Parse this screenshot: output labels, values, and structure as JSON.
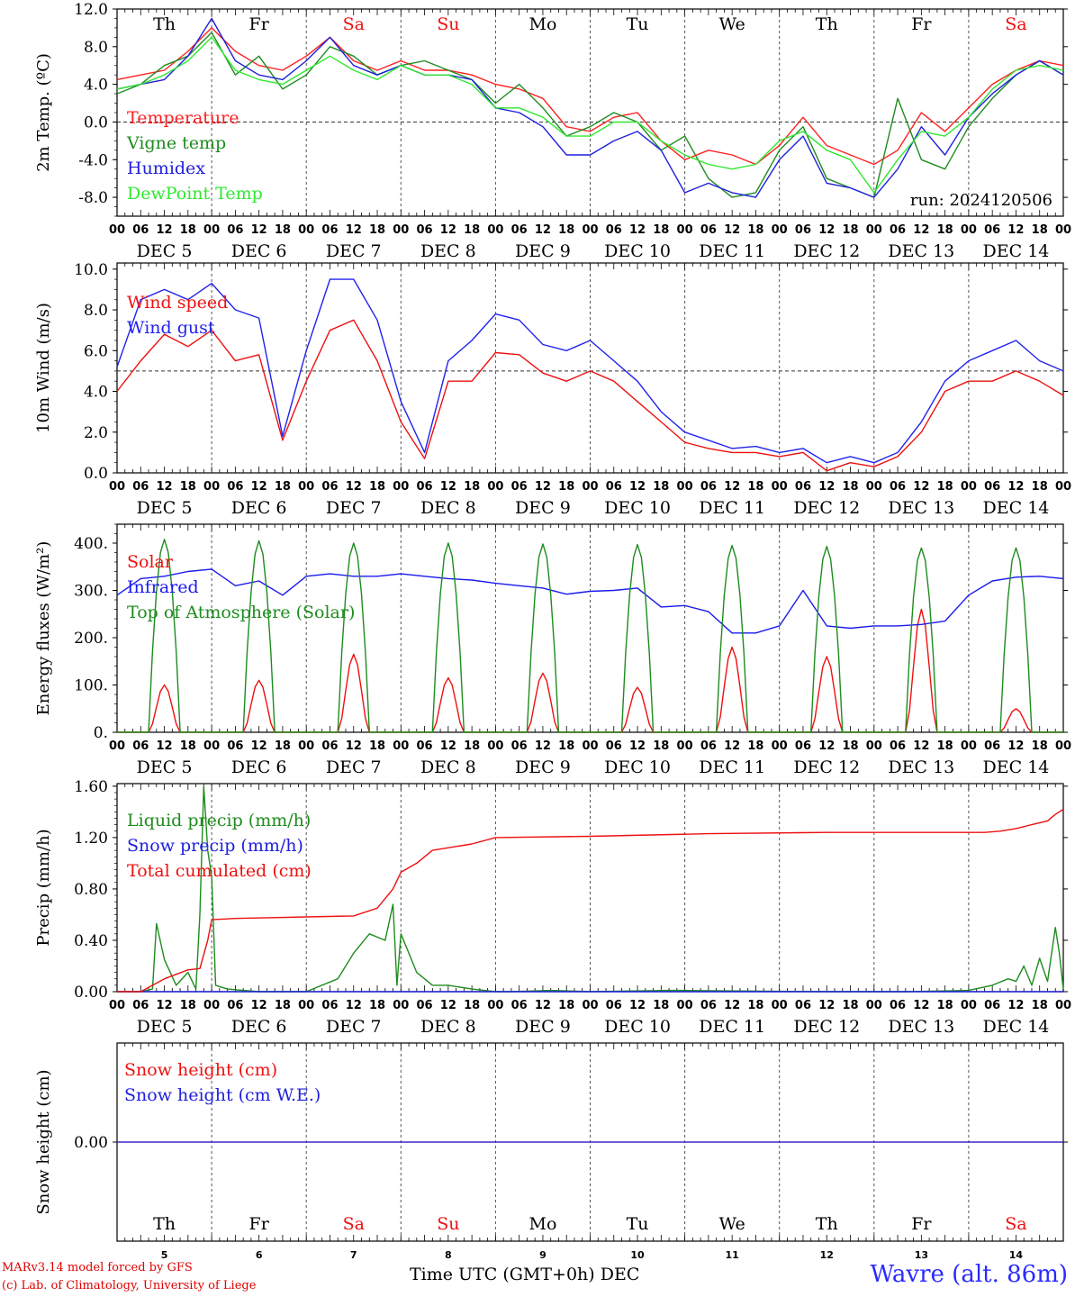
{
  "chart_data": [
    {
      "type": "line",
      "ylabel": "2m Temp. (ºC)",
      "ylim": [
        -10,
        12
      ],
      "yticks": [
        "12.0",
        "8.0",
        "4.0",
        "0.0",
        "-4.0",
        "-8.0"
      ],
      "yticks_values": [
        12,
        8,
        4,
        0,
        -4,
        -8
      ],
      "reference_line": 0,
      "annotation": "run: 2024120506",
      "x_hours_start": 0,
      "x_hours_end": 240,
      "series": [
        {
          "name": "Temperature",
          "color": "#ff2020",
          "x": [
            0,
            6,
            12,
            18,
            24,
            30,
            36,
            42,
            48,
            54,
            60,
            66,
            72,
            78,
            84,
            90,
            96,
            102,
            108,
            114,
            120,
            126,
            132,
            138,
            144,
            150,
            156,
            162,
            168,
            174,
            180,
            186,
            192,
            198,
            204,
            210,
            216,
            222,
            228,
            234,
            240
          ],
          "values": [
            4.5,
            5.0,
            5.5,
            7.5,
            10.0,
            7.5,
            6.0,
            5.5,
            7.0,
            9.0,
            6.5,
            5.5,
            6.5,
            5.5,
            5.5,
            5.0,
            4.0,
            3.5,
            2.5,
            -0.5,
            -1.0,
            0.5,
            1.0,
            -2.0,
            -4.0,
            -3.0,
            -3.5,
            -4.5,
            -2.5,
            0.5,
            -2.5,
            -3.5,
            -4.5,
            -3.0,
            1.0,
            -1.0,
            1.5,
            4.0,
            5.5,
            6.5,
            6.0
          ]
        },
        {
          "name": "Vigne temp",
          "color": "#1e8c1e",
          "x": [
            0,
            6,
            12,
            18,
            24,
            30,
            36,
            42,
            48,
            54,
            60,
            66,
            72,
            78,
            84,
            90,
            96,
            102,
            108,
            114,
            120,
            126,
            132,
            138,
            144,
            150,
            156,
            162,
            168,
            174,
            180,
            186,
            192,
            198,
            204,
            210,
            216,
            222,
            228,
            234,
            240
          ],
          "values": [
            3.0,
            4.0,
            6.0,
            7.0,
            9.5,
            5.0,
            7.0,
            3.5,
            5.0,
            8.0,
            7.0,
            5.0,
            6.0,
            6.5,
            5.5,
            4.5,
            2.0,
            4.0,
            1.5,
            -1.5,
            -0.5,
            1.0,
            0.0,
            -3.0,
            -1.5,
            -6.0,
            -8.0,
            -7.5,
            -3.0,
            -0.5,
            -6.0,
            -7.0,
            -8.0,
            2.5,
            -4.0,
            -5.0,
            -0.5,
            2.5,
            5.0,
            6.5,
            5.0
          ]
        },
        {
          "name": "Humidex",
          "color": "#2020dd",
          "x": [
            0,
            6,
            12,
            18,
            24,
            30,
            36,
            42,
            48,
            54,
            60,
            66,
            72,
            78,
            84,
            90,
            96,
            102,
            108,
            114,
            120,
            126,
            132,
            138,
            144,
            150,
            156,
            162,
            168,
            174,
            180,
            186,
            192,
            198,
            204,
            210,
            216,
            222,
            228,
            234,
            240
          ],
          "values": [
            3.5,
            4.0,
            4.5,
            7.0,
            11.0,
            6.5,
            5.0,
            4.5,
            6.5,
            9.0,
            6.0,
            5.0,
            6.0,
            5.0,
            5.0,
            4.5,
            1.5,
            1.0,
            -0.5,
            -3.5,
            -3.5,
            -2.0,
            -1.0,
            -3.0,
            -7.5,
            -6.5,
            -7.5,
            -8.0,
            -4.0,
            -1.5,
            -6.5,
            -7.0,
            -8.0,
            -5.0,
            -0.5,
            -3.5,
            0.5,
            3.0,
            5.0,
            6.5,
            5.0
          ]
        },
        {
          "name": "DewPoint Temp",
          "color": "#30e830",
          "x": [
            0,
            6,
            12,
            18,
            24,
            30,
            36,
            42,
            48,
            54,
            60,
            66,
            72,
            78,
            84,
            90,
            96,
            102,
            108,
            114,
            120,
            126,
            132,
            138,
            144,
            150,
            156,
            162,
            168,
            174,
            180,
            186,
            192,
            198,
            204,
            210,
            216,
            222,
            228,
            234,
            240
          ],
          "values": [
            3.5,
            4.0,
            5.0,
            6.5,
            9.0,
            5.5,
            4.5,
            4.0,
            5.5,
            7.0,
            5.5,
            4.5,
            6.0,
            5.0,
            5.0,
            4.0,
            1.5,
            1.5,
            0.5,
            -1.5,
            -1.5,
            0.0,
            0.0,
            -2.0,
            -3.5,
            -4.5,
            -5.0,
            -4.5,
            -2.0,
            -1.0,
            -3.0,
            -4.0,
            -7.5,
            -4.0,
            -1.0,
            -1.5,
            0.5,
            3.5,
            5.5,
            6.0,
            5.5
          ]
        }
      ]
    },
    {
      "type": "line",
      "ylabel": "10m Wind (m/s)",
      "ylim": [
        0,
        10
      ],
      "yticks": [
        "10.0",
        "8.0",
        "6.0",
        "4.0",
        "2.0",
        "0.0"
      ],
      "yticks_values": [
        10,
        8,
        6,
        4,
        2,
        0
      ],
      "reference_line": 5,
      "x_hours_start": 0,
      "x_hours_end": 240,
      "series": [
        {
          "name": "Wind speed",
          "color": "#ee1010",
          "x": [
            0,
            6,
            12,
            18,
            24,
            30,
            36,
            42,
            48,
            54,
            60,
            66,
            72,
            78,
            84,
            90,
            96,
            102,
            108,
            114,
            120,
            126,
            132,
            138,
            144,
            150,
            156,
            162,
            168,
            174,
            180,
            186,
            192,
            198,
            204,
            210,
            216,
            222,
            228,
            234,
            240
          ],
          "values": [
            4.0,
            5.5,
            6.8,
            6.2,
            7.0,
            5.5,
            5.8,
            1.6,
            4.5,
            7.0,
            7.5,
            5.5,
            2.5,
            0.7,
            4.5,
            4.5,
            5.9,
            5.8,
            4.9,
            4.5,
            5.0,
            4.5,
            3.5,
            2.5,
            1.5,
            1.2,
            1.0,
            1.0,
            0.8,
            1.0,
            0.1,
            0.5,
            0.3,
            0.8,
            2.0,
            4.0,
            4.5,
            4.5,
            5.0,
            4.5,
            3.8
          ]
        },
        {
          "name": "Wind gust",
          "color": "#2222ee",
          "x": [
            0,
            6,
            12,
            18,
            24,
            30,
            36,
            42,
            48,
            54,
            60,
            66,
            72,
            78,
            84,
            90,
            96,
            102,
            108,
            114,
            120,
            126,
            132,
            138,
            144,
            150,
            156,
            162,
            168,
            174,
            180,
            186,
            192,
            198,
            204,
            210,
            216,
            222,
            228,
            234,
            240
          ],
          "values": [
            5.2,
            8.5,
            9.0,
            8.5,
            9.3,
            8.0,
            7.6,
            1.8,
            6.0,
            9.5,
            9.5,
            7.5,
            3.5,
            1.0,
            5.5,
            6.5,
            7.8,
            7.5,
            6.3,
            6.0,
            6.5,
            5.5,
            4.5,
            3.0,
            2.0,
            1.6,
            1.2,
            1.3,
            1.0,
            1.2,
            0.5,
            0.8,
            0.5,
            1.0,
            2.5,
            4.5,
            5.5,
            6.0,
            6.5,
            5.5,
            5.0
          ]
        }
      ]
    },
    {
      "type": "line",
      "ylabel": "Energy fluxes (W/m²)",
      "ylim": [
        0,
        440
      ],
      "yticks": [
        "400.",
        "300.",
        "200.",
        "100.",
        "0."
      ],
      "yticks_values": [
        400,
        300,
        200,
        100,
        0
      ],
      "x_hours_start": 0,
      "x_hours_end": 240,
      "series": [
        {
          "name": "Solar",
          "color": "#ee1010",
          "day_peaks": [
            100,
            110,
            165,
            115,
            125,
            95,
            180,
            160,
            260,
            50
          ]
        },
        {
          "name": "Infrared",
          "color": "#1a1aee",
          "x": [
            0,
            6,
            12,
            18,
            24,
            30,
            36,
            42,
            48,
            54,
            60,
            66,
            72,
            78,
            84,
            90,
            96,
            102,
            108,
            114,
            120,
            126,
            132,
            138,
            144,
            150,
            156,
            162,
            168,
            174,
            180,
            186,
            192,
            198,
            204,
            210,
            216,
            222,
            228,
            234,
            240
          ],
          "values": [
            290,
            325,
            330,
            340,
            345,
            310,
            320,
            290,
            330,
            335,
            330,
            330,
            335,
            330,
            325,
            322,
            315,
            310,
            305,
            292,
            298,
            300,
            305,
            265,
            268,
            255,
            210,
            210,
            225,
            300,
            225,
            220,
            225,
            225,
            228,
            235,
            290,
            320,
            328,
            330,
            325
          ]
        },
        {
          "name": "Top of Atmosphere (Solar)",
          "color": "#1e8c1e",
          "day_peaks": [
            408,
            405,
            400,
            400,
            398,
            397,
            395,
            393,
            390,
            390
          ]
        }
      ]
    },
    {
      "type": "line",
      "ylabel": "Precip (mm/h)",
      "ylim": [
        0,
        1.6
      ],
      "yticks": [
        "1.60",
        "1.20",
        "0.80",
        "0.40",
        "0.00"
      ],
      "yticks_values": [
        1.6,
        1.2,
        0.8,
        0.4,
        0
      ],
      "x_hours_start": 0,
      "x_hours_end": 240,
      "series": [
        {
          "name": "Liquid precip (mm/h)",
          "color": "#1e8c1e",
          "x": [
            0,
            6,
            9,
            10,
            12,
            15,
            18,
            20,
            21,
            22,
            23,
            24,
            25,
            28,
            36,
            48,
            56,
            60,
            64,
            68,
            70,
            71,
            72,
            74,
            76,
            80,
            84,
            90,
            96,
            100,
            110,
            120,
            140,
            180,
            200,
            216,
            222,
            226,
            228,
            230,
            232,
            234,
            236,
            238,
            239,
            240
          ],
          "values": [
            0,
            0,
            0.02,
            0.53,
            0.25,
            0.05,
            0.15,
            0.02,
            0.6,
            1.6,
            1.1,
            0.9,
            0.05,
            0.02,
            0,
            0,
            0.1,
            0.3,
            0.45,
            0.4,
            0.68,
            0.05,
            0.45,
            0.3,
            0.15,
            0.05,
            0.05,
            0.02,
            0,
            0,
            0.01,
            0,
            0.01,
            0,
            0,
            0.01,
            0.05,
            0.1,
            0.08,
            0.2,
            0.05,
            0.26,
            0.08,
            0.5,
            0.3,
            0.02
          ]
        },
        {
          "name": "Snow precip (mm/h)",
          "color": "#2020dd",
          "x": [
            0,
            240
          ],
          "values": [
            0,
            0
          ]
        },
        {
          "name": "Total cumulated (cm)",
          "color": "#ee1010",
          "x": [
            0,
            6,
            12,
            18,
            21,
            23,
            24,
            30,
            60,
            66,
            70,
            72,
            76,
            80,
            90,
            96,
            120,
            150,
            180,
            216,
            220,
            224,
            228,
            232,
            236,
            238,
            240
          ],
          "values": [
            0,
            0,
            0.1,
            0.17,
            0.18,
            0.4,
            0.56,
            0.57,
            0.59,
            0.65,
            0.8,
            0.93,
            1.0,
            1.1,
            1.15,
            1.2,
            1.21,
            1.23,
            1.24,
            1.24,
            1.24,
            1.25,
            1.27,
            1.3,
            1.33,
            1.38,
            1.42
          ]
        }
      ]
    },
    {
      "type": "line",
      "ylabel": "Snow height (cm)",
      "yticks": [
        "0.00"
      ],
      "yticks_values": [
        0
      ],
      "x_hours_start": 0,
      "x_hours_end": 240,
      "series": [
        {
          "name": "Snow height (cm)",
          "color": "#ee1010",
          "x": [
            0,
            240
          ],
          "values": [
            0,
            0
          ]
        },
        {
          "name": "Snow height (cm W.E.)",
          "color": "#2020dd",
          "x": [
            0,
            240
          ],
          "values": [
            0,
            0
          ]
        }
      ]
    }
  ],
  "axis": {
    "hour_ticks": [
      "00",
      "06",
      "12",
      "18"
    ],
    "dates": [
      "DEC 5",
      "DEC 6",
      "DEC 7",
      "DEC 8",
      "DEC 9",
      "DEC 10",
      "DEC 11",
      "DEC 12",
      "DEC 13",
      "DEC 14"
    ],
    "final_tick": "00",
    "weekdays": [
      "Th",
      "Fr",
      "Sa",
      "Su",
      "Mo",
      "Tu",
      "We",
      "Th",
      "Fr",
      "Sa"
    ],
    "weekend_color": "#ee1010",
    "bottom_days": [
      "5",
      "6",
      "7",
      "8",
      "9",
      "10",
      "11",
      "12",
      "13",
      "14"
    ]
  },
  "footer": {
    "credit_line1": "MARv3.14 model forced by GFS",
    "credit_line2": "(c) Lab. of Climatology, University of Liege",
    "xaxis_title": "Time UTC (GMT+0h) DEC",
    "station": "Wavre (alt. 86m)"
  }
}
